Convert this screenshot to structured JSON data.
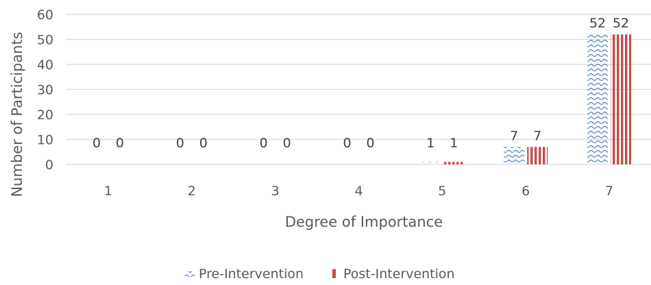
{
  "chart_data": {
    "type": "bar",
    "categories": [
      "1",
      "2",
      "3",
      "4",
      "5",
      "6",
      "7"
    ],
    "series": [
      {
        "name": "Pre-Intervention",
        "values": [
          0,
          0,
          0,
          0,
          1,
          7,
          52
        ],
        "color": "#4a7ebb",
        "pattern": "wave"
      },
      {
        "name": "Post-Intervention",
        "values": [
          0,
          0,
          0,
          0,
          1,
          7,
          52
        ],
        "color": "#c0504d",
        "pattern": "vertical-stripes"
      }
    ],
    "xlabel": "Degree of Importance",
    "ylabel": "Number of Participants",
    "ylim": [
      0,
      60
    ],
    "yticks": [
      0,
      10,
      20,
      30,
      40,
      50,
      60
    ],
    "grid": true,
    "legend": "bottom",
    "data_labels": true
  }
}
